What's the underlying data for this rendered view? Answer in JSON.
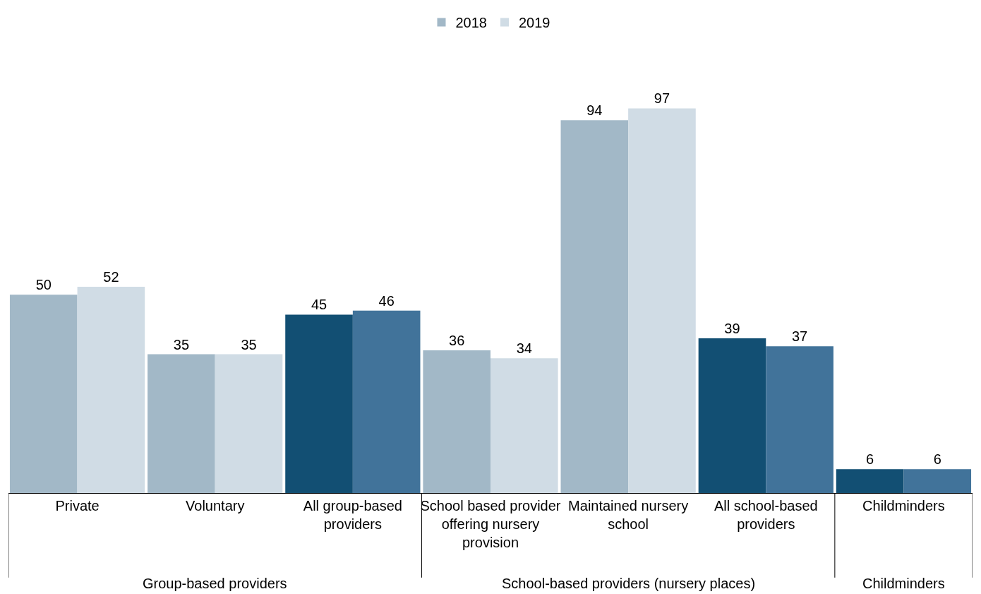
{
  "chart_data": {
    "type": "bar",
    "categories": [
      "Private",
      "Voluntary",
      "All group-based providers",
      "School based provider offering nursery provision",
      "Maintained nursery school",
      "All school-based providers",
      "Childminders"
    ],
    "series": [
      {
        "name": "2018",
        "colors": [
          "#a2b8c7",
          "#a2b8c7",
          "#124f73",
          "#a2b8c7",
          "#a2b8c7",
          "#124f73",
          "#124f73"
        ],
        "values": [
          50,
          35,
          45,
          36,
          94,
          39,
          6
        ]
      },
      {
        "name": "2019",
        "colors": [
          "#d0dce5",
          "#d0dce5",
          "#41739a",
          "#d0dce5",
          "#d0dce5",
          "#41739a",
          "#41739a"
        ],
        "values": [
          52,
          35,
          46,
          34,
          97,
          37,
          6
        ]
      }
    ],
    "data_labels": true,
    "grid": false,
    "legend": "top",
    "annotations": [
      "Group-based providers",
      "School-based providers (nursery places)",
      "Childminders"
    ]
  }
}
